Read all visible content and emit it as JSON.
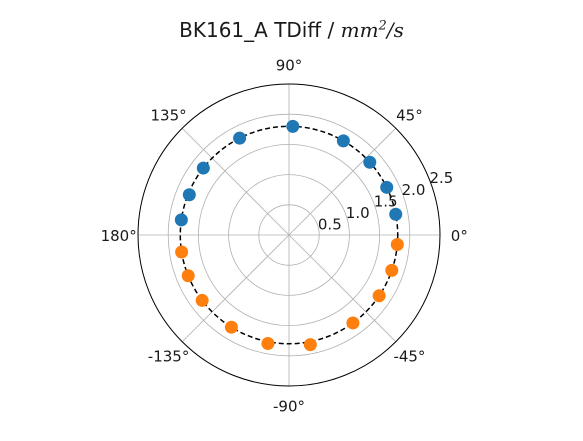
{
  "chart_data": {
    "type": "scatter",
    "projection": "polar",
    "title": "BK161_A TDiff / ",
    "title_unit": {
      "base": "mm",
      "power": "2",
      "suffix": "/s"
    },
    "radial_ticks": [
      "0.5",
      "1.0",
      "1.5",
      "2.0",
      "2.5"
    ],
    "radial_tick_values": [
      0.5,
      1.0,
      1.5,
      2.0,
      2.5
    ],
    "rlim": [
      0,
      2.5
    ],
    "angle_ticks": [
      {
        "deg": 0,
        "label": "0°"
      },
      {
        "deg": 45,
        "label": "45°"
      },
      {
        "deg": 90,
        "label": "90°"
      },
      {
        "deg": 135,
        "label": "135°"
      },
      {
        "deg": 180,
        "label": "180°"
      },
      {
        "deg": -135,
        "label": "-135°"
      },
      {
        "deg": -90,
        "label": "-90°"
      },
      {
        "deg": -45,
        "label": "-45°"
      }
    ],
    "grid": true,
    "reference_circle": {
      "r": 1.8,
      "style": "dashed",
      "color": "#000000"
    },
    "series": [
      {
        "color": "#1f77b4",
        "points": [
          {
            "theta": 11,
            "r": 1.8
          },
          {
            "theta": 26,
            "r": 1.8
          },
          {
            "theta": 42,
            "r": 1.8
          },
          {
            "theta": 60,
            "r": 1.8
          },
          {
            "theta": 88,
            "r": 1.8
          },
          {
            "theta": 117,
            "r": 1.8
          },
          {
            "theta": 142,
            "r": 1.8
          },
          {
            "theta": 158,
            "r": 1.78
          },
          {
            "theta": 172,
            "r": 1.8
          }
        ]
      },
      {
        "color": "#ff7f0e",
        "points": [
          {
            "theta": -5,
            "r": 1.8
          },
          {
            "theta": -19,
            "r": 1.8
          },
          {
            "theta": -34,
            "r": 1.8
          },
          {
            "theta": -54,
            "r": 1.8
          },
          {
            "theta": -79,
            "r": 1.85
          },
          {
            "theta": -101,
            "r": 1.83
          },
          {
            "theta": -122,
            "r": 1.8
          },
          {
            "theta": -143,
            "r": 1.8
          },
          {
            "theta": -158,
            "r": 1.8
          },
          {
            "theta": -171,
            "r": 1.8
          }
        ]
      }
    ]
  }
}
